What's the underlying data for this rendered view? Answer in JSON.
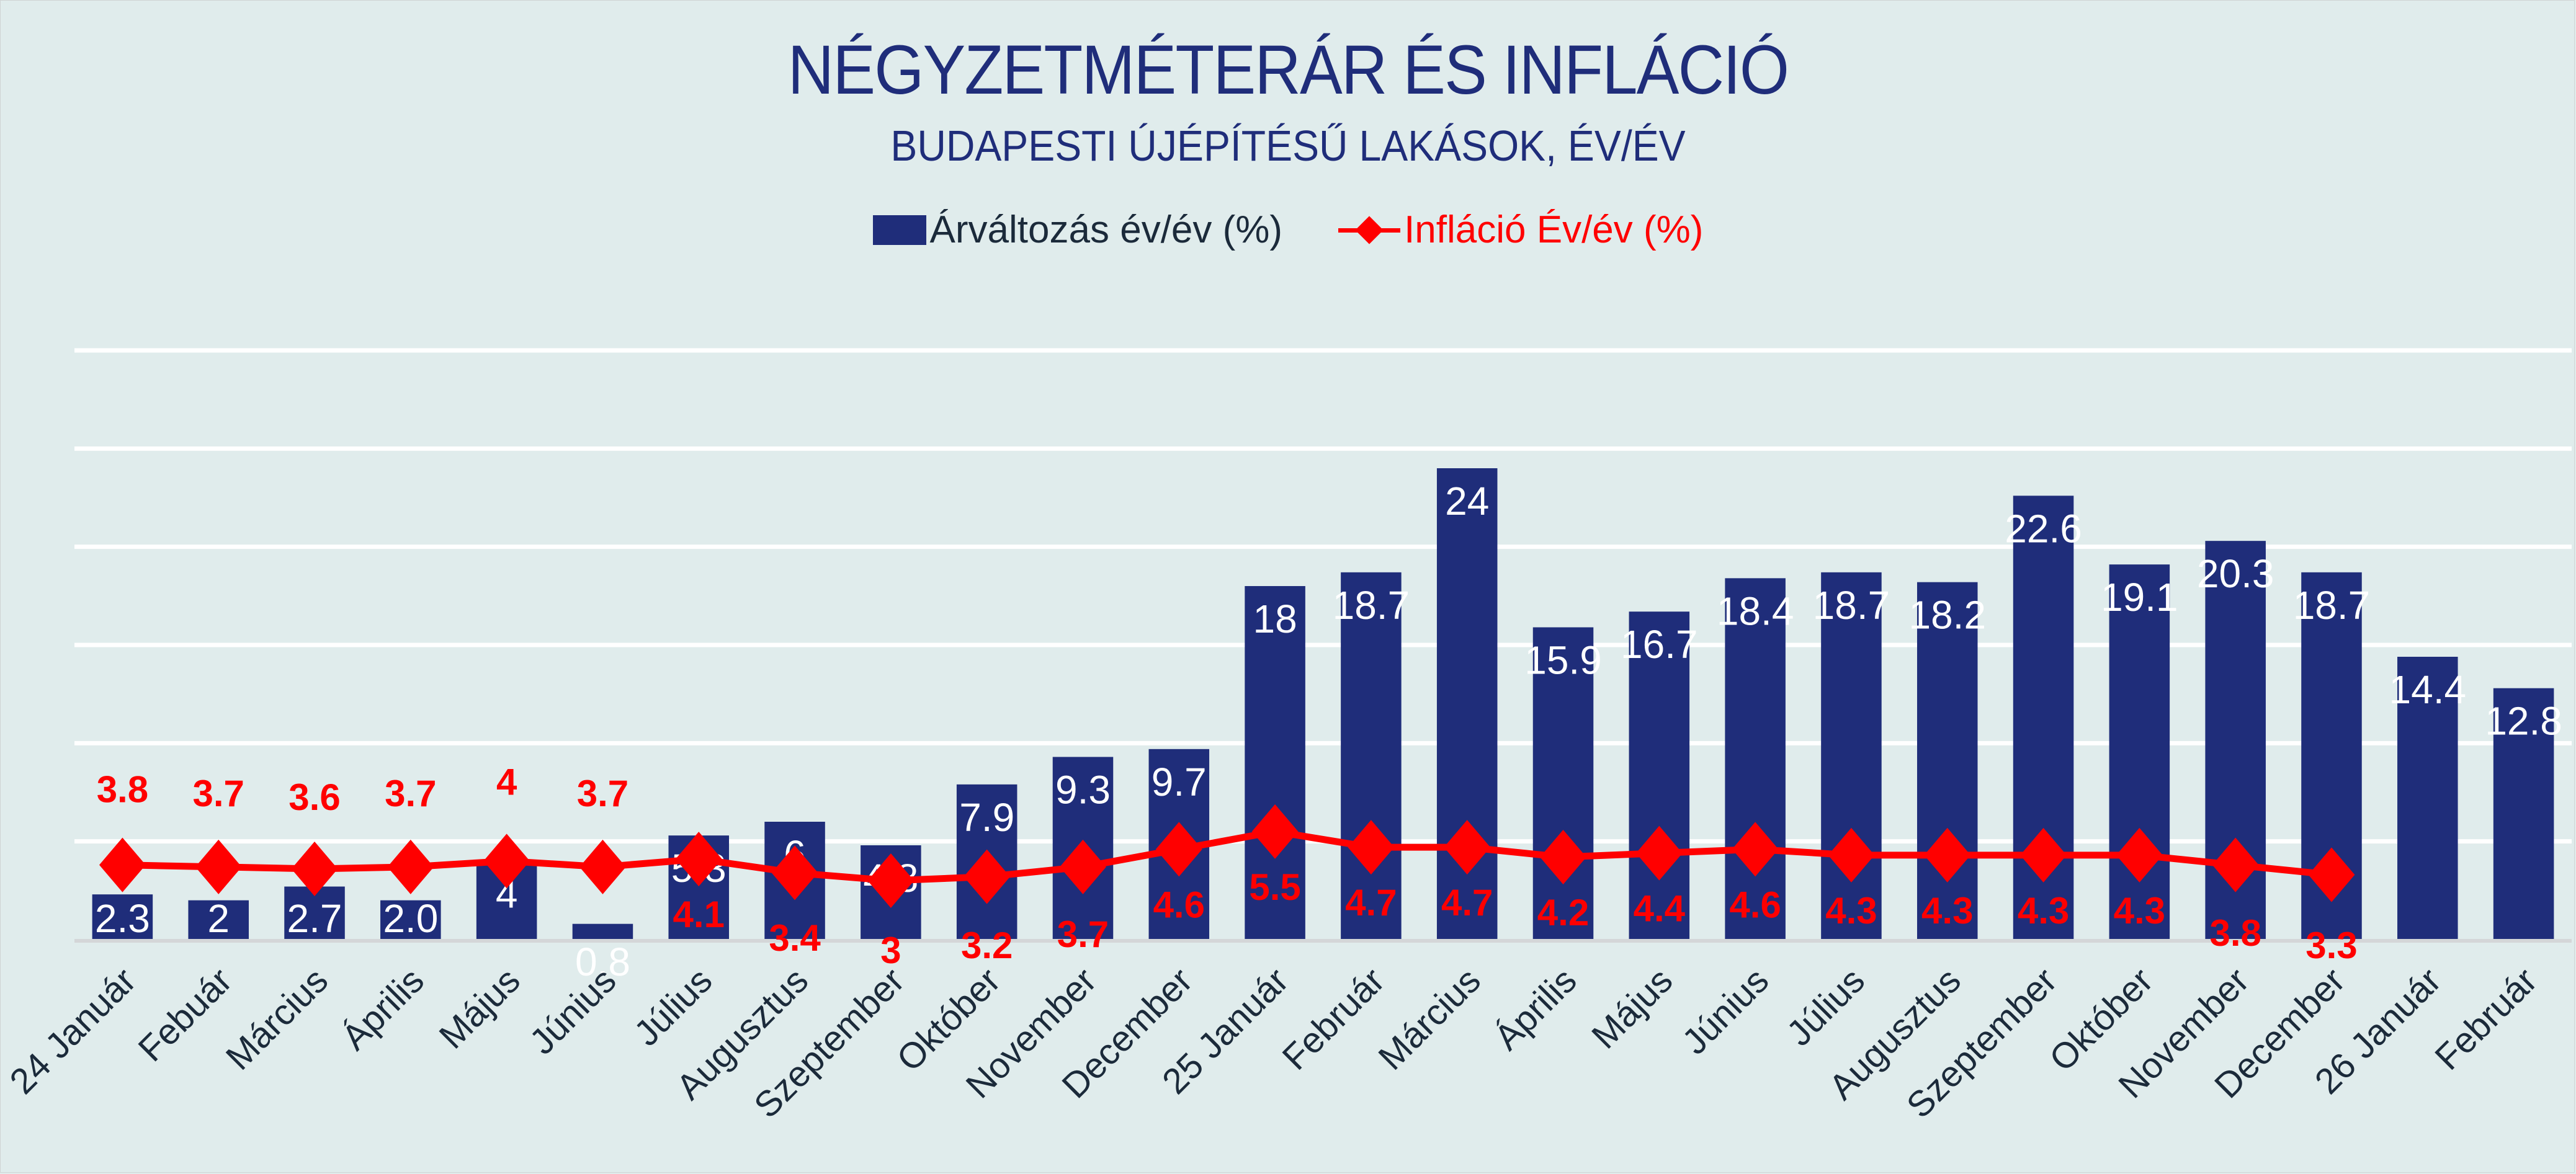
{
  "chart_data": {
    "type": "bar",
    "title": "NÉGYZETMÉTERÁR ÉS INFLÁCIÓ",
    "subtitle": "BUDAPESTI ÚJÉPÍTÉSŰ LAKÁSOK, ÉV/ÉV",
    "xlabel": "",
    "ylabel": "",
    "ylim": [
      0,
      30
    ],
    "grid": true,
    "gridlines": [
      0,
      5,
      10,
      15,
      20,
      25,
      30
    ],
    "legend_position": "top-center",
    "categories": [
      "24 Január",
      "Febuár",
      "Március",
      "Április",
      "Május",
      "Június",
      "Július",
      "Augusztus",
      "Szeptember",
      "Október",
      "November",
      "December",
      "25 Január",
      "Február",
      "Március",
      "Április",
      "Május",
      "Június",
      "Július",
      "Augusztus",
      "Szeptember",
      "Október",
      "November",
      "December",
      "26 Január",
      "Február"
    ],
    "series": [
      {
        "name": "Árváltozás év/év (%)",
        "type": "bar",
        "color": "#1f2d7a",
        "values": [
          2.3,
          2,
          2.7,
          2.0,
          4,
          0.8,
          5.3,
          6,
          4.8,
          7.9,
          9.3,
          9.7,
          18,
          18.7,
          24,
          15.9,
          16.7,
          18.4,
          18.7,
          18.2,
          22.6,
          19.1,
          20.3,
          18.7,
          14.4,
          12.8
        ],
        "labels": [
          "2.3",
          "2",
          "2.7",
          "2.0",
          "4",
          "0.8",
          "5.3",
          "6",
          "4.8",
          "7.9",
          "9.3",
          "9.7",
          "18",
          "18.7",
          "24",
          "15.9",
          "16.7",
          "18.4",
          "18.7",
          "18.2",
          "22.6",
          "19.1",
          "20.3",
          "18.7",
          "14.4",
          "12.8"
        ]
      },
      {
        "name": "Infláció Év/év (%)",
        "type": "line",
        "marker": "diamond",
        "color": "#ff0000",
        "values": [
          3.8,
          3.7,
          3.6,
          3.7,
          4,
          3.7,
          4.1,
          3.4,
          3,
          3.2,
          3.7,
          4.6,
          5.5,
          4.7,
          4.7,
          4.2,
          4.4,
          4.6,
          4.3,
          4.3,
          4.3,
          4.3,
          3.8,
          3.3,
          null,
          null
        ],
        "labels": [
          "3.8",
          "3.7",
          "3.6",
          "3.7",
          "4",
          "3.7",
          "4.1",
          "3.4",
          "3",
          "3.2",
          "3.7",
          "4.6",
          "5.5",
          "4.7",
          "4.7",
          "4.2",
          "4.4",
          "4.6",
          "4.3",
          "4.3",
          "4.3",
          "4.3",
          "3.8",
          "3.3",
          "",
          ""
        ]
      }
    ]
  },
  "legend": {
    "bar_label": "Árváltozás év/év (%)",
    "line_label": "Infláció Év/év (%)"
  }
}
